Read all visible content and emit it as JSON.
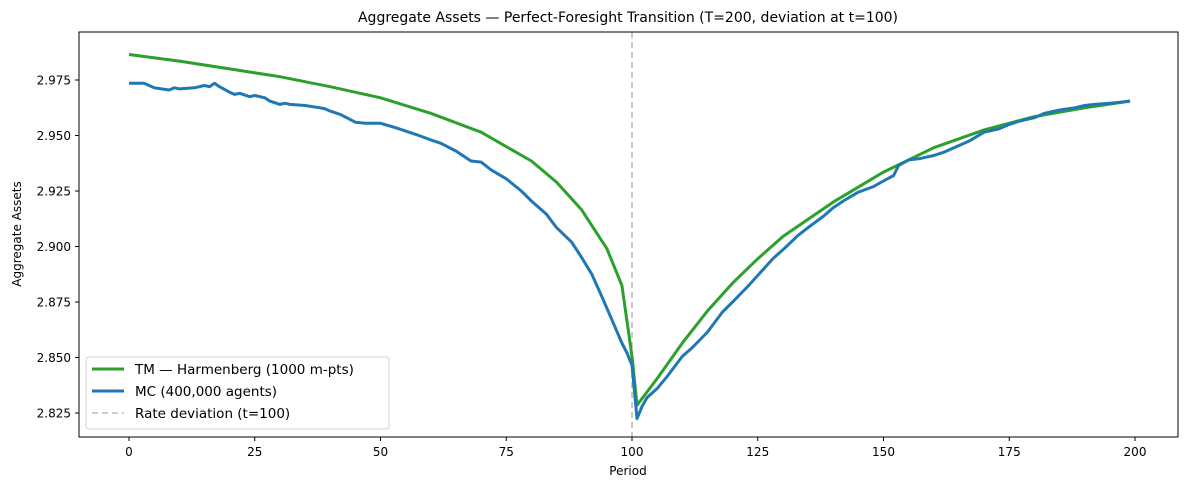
{
  "chart_data": {
    "type": "line",
    "title": "Aggregate Assets — Perfect-Foresight Transition (T=200, deviation at t=100)",
    "xlabel": "Period",
    "ylabel": "Aggregate Assets",
    "xlim": [
      -10,
      209
    ],
    "ylim": [
      2.8145,
      2.9965
    ],
    "xticks": [
      0,
      25,
      50,
      75,
      100,
      125,
      150,
      175,
      200
    ],
    "xtick_labels": [
      "0",
      "25",
      "50",
      "75",
      "100",
      "125",
      "150",
      "175",
      "200"
    ],
    "yticks": [
      2.825,
      2.85,
      2.875,
      2.9,
      2.925,
      2.95,
      2.975
    ],
    "ytick_labels": [
      "2.825",
      "2.850",
      "2.875",
      "2.900",
      "2.925",
      "2.950",
      "2.975"
    ],
    "grid": false,
    "legend_position": "lower left",
    "vline": {
      "x": 100,
      "label": "Rate deviation (t=100)",
      "color": "#bbbbbb",
      "style": "dashed"
    },
    "series": [
      {
        "name": "TM — Harmenberg (1000 m-pts)",
        "color": "#2ca02c",
        "x": [
          0,
          10,
          20,
          30,
          40,
          50,
          60,
          70,
          80,
          85,
          90,
          95,
          98,
          100,
          101,
          103,
          105,
          110,
          115,
          120,
          125,
          130,
          140,
          150,
          160,
          170,
          180,
          190,
          199
        ],
        "values": [
          2.9865,
          2.9835,
          2.98,
          2.9765,
          2.972,
          2.967,
          2.96,
          2.9515,
          2.9385,
          2.929,
          2.9165,
          2.899,
          2.8825,
          2.8505,
          2.8285,
          2.8345,
          2.8405,
          2.8565,
          2.871,
          2.8835,
          2.8945,
          2.9045,
          2.92,
          2.9335,
          2.9445,
          2.9525,
          2.9585,
          2.9625,
          2.9655
        ]
      },
      {
        "name": "MC (400,000 agents)",
        "color": "#1f77b4",
        "x": [
          0,
          3,
          5,
          8,
          9,
          10,
          13,
          15,
          16,
          17,
          18,
          20,
          21,
          22,
          24,
          25,
          27,
          28,
          30,
          31,
          32,
          35,
          38,
          39,
          40,
          42,
          45,
          47,
          50,
          53,
          55,
          57,
          60,
          62,
          65,
          68,
          70,
          72,
          75,
          78,
          80,
          83,
          85,
          88,
          90,
          92,
          94,
          96,
          98,
          99,
          100,
          101,
          102,
          103,
          105,
          107,
          110,
          112,
          115,
          118,
          120,
          123,
          125,
          128,
          130,
          133,
          135,
          138,
          140,
          142,
          145,
          148,
          150,
          152,
          153,
          155,
          157,
          160,
          162,
          165,
          167,
          170,
          173,
          175,
          177,
          180,
          182,
          185,
          188,
          190,
          192,
          195,
          197,
          199
        ],
        "values": [
          2.9735,
          2.9735,
          2.9715,
          2.9705,
          2.9715,
          2.971,
          2.9715,
          2.9725,
          2.972,
          2.9735,
          2.972,
          2.9695,
          2.9685,
          2.969,
          2.9675,
          2.968,
          2.967,
          2.9655,
          2.964,
          2.9645,
          2.964,
          2.9635,
          2.9625,
          2.962,
          2.961,
          2.9595,
          2.956,
          2.9555,
          2.9555,
          2.9535,
          2.952,
          2.9505,
          2.948,
          2.9465,
          2.943,
          2.9385,
          2.938,
          2.9345,
          2.9305,
          2.925,
          2.9205,
          2.9145,
          2.9085,
          2.902,
          2.895,
          2.8875,
          2.8775,
          2.867,
          2.8565,
          2.852,
          2.8465,
          2.8225,
          2.828,
          2.832,
          2.836,
          2.8415,
          2.8505,
          2.8545,
          2.8615,
          2.8705,
          2.875,
          2.882,
          2.887,
          2.8945,
          2.8985,
          2.905,
          2.9085,
          2.9135,
          2.9175,
          2.9205,
          2.9245,
          2.927,
          2.9295,
          2.932,
          2.9365,
          2.939,
          2.9395,
          2.941,
          2.9425,
          2.9455,
          2.9475,
          2.9515,
          2.953,
          2.955,
          2.9565,
          2.958,
          2.96,
          2.9615,
          2.9625,
          2.9635,
          2.964,
          2.9645,
          2.965,
          2.9655
        ]
      }
    ]
  }
}
